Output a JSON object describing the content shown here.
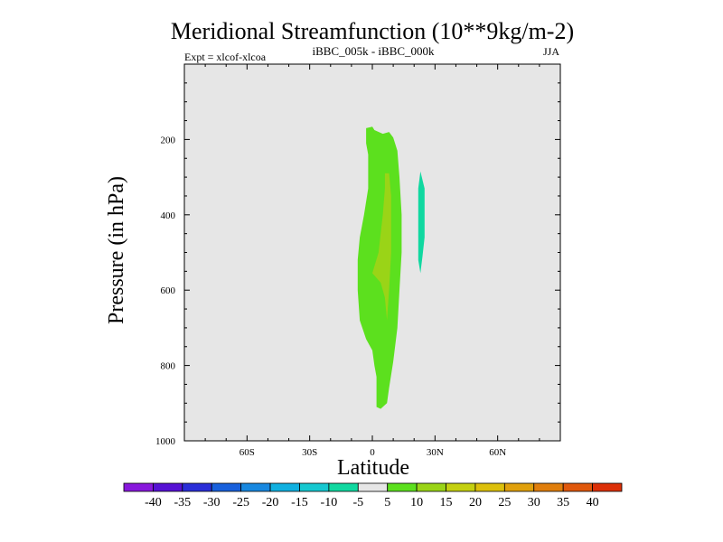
{
  "chart_data": {
    "type": "heatmap",
    "title": "Meridional Streamfunction (10**9kg/m-2)",
    "subtitle_left": "Expt = xlcof-xlcoa",
    "subtitle_center": "iBBC_005k - iBBC_000k",
    "subtitle_right": "JJA",
    "xlabel": "Latitude",
    "ylabel": "Pressure (in hPa)",
    "xlim": [
      -90,
      90
    ],
    "ylim": [
      1000,
      0
    ],
    "x_ticks": [
      {
        "value": -60,
        "label": "60S"
      },
      {
        "value": -30,
        "label": "30S"
      },
      {
        "value": 0,
        "label": "0"
      },
      {
        "value": 30,
        "label": "30N"
      },
      {
        "value": 60,
        "label": "60N"
      }
    ],
    "y_ticks": [
      {
        "value": 200,
        "label": "200"
      },
      {
        "value": 400,
        "label": "400"
      },
      {
        "value": 600,
        "label": "600"
      },
      {
        "value": 800,
        "label": "800"
      },
      {
        "value": 1000,
        "label": "1000"
      }
    ],
    "background_level": "-5 to 5",
    "background_color": "#e6e6e6",
    "regions": [
      {
        "level": "5 to 10",
        "color": "#5ce01e",
        "polygon": [
          [
            -3,
            170
          ],
          [
            0,
            166
          ],
          [
            1,
            175
          ],
          [
            5,
            185
          ],
          [
            8,
            180
          ],
          [
            10,
            195
          ],
          [
            12,
            230
          ],
          [
            13,
            300
          ],
          [
            14,
            400
          ],
          [
            14,
            500
          ],
          [
            13,
            600
          ],
          [
            12,
            700
          ],
          [
            10,
            790
          ],
          [
            8,
            860
          ],
          [
            7,
            900
          ],
          [
            4,
            915
          ],
          [
            2,
            910
          ],
          [
            2,
            870
          ],
          [
            2,
            830
          ],
          [
            1,
            800
          ],
          [
            0,
            760
          ],
          [
            -3,
            730
          ],
          [
            -6,
            680
          ],
          [
            -7,
            600
          ],
          [
            -7,
            520
          ],
          [
            -6,
            460
          ],
          [
            -4,
            400
          ],
          [
            -2,
            330
          ],
          [
            -2,
            280
          ],
          [
            -2,
            240
          ],
          [
            -3,
            210
          ],
          [
            -3,
            170
          ]
        ]
      },
      {
        "level": "10 to 15",
        "color": "#9ad417",
        "polygon": [
          [
            6,
            290
          ],
          [
            8,
            290
          ],
          [
            9,
            350
          ],
          [
            9,
            400
          ],
          [
            9,
            450
          ],
          [
            9,
            500
          ],
          [
            8,
            600
          ],
          [
            7,
            680
          ],
          [
            6,
            620
          ],
          [
            5,
            600
          ],
          [
            4,
            580
          ],
          [
            0,
            555
          ],
          [
            3,
            500
          ],
          [
            4,
            450
          ],
          [
            5,
            400
          ],
          [
            6,
            330
          ],
          [
            6,
            290
          ]
        ]
      },
      {
        "level": "-10 to -5",
        "color": "#10d8a0",
        "polygon": [
          [
            23,
            285
          ],
          [
            25,
            330
          ],
          [
            25,
            400
          ],
          [
            25,
            460
          ],
          [
            24,
            510
          ],
          [
            23,
            555
          ],
          [
            22,
            520
          ],
          [
            22,
            450
          ],
          [
            22,
            380
          ],
          [
            22,
            330
          ],
          [
            23,
            285
          ]
        ]
      }
    ],
    "colorbar": {
      "colors": [
        "#8818dc",
        "#5612d4",
        "#2a2ed8",
        "#1860dc",
        "#1888e0",
        "#10b0e0",
        "#16c8d0",
        "#10d8a0",
        "#e6e6e6",
        "#5ce01e",
        "#9ad417",
        "#c4d010",
        "#dcc00c",
        "#e0a00c",
        "#e07e0c",
        "#e0580c",
        "#dc3008"
      ],
      "labels": [
        "-40",
        "-35",
        "-30",
        "-25",
        "-20",
        "-15",
        "-10",
        "-5",
        "5",
        "10",
        "15",
        "20",
        "25",
        "30",
        "35",
        "40"
      ]
    }
  }
}
